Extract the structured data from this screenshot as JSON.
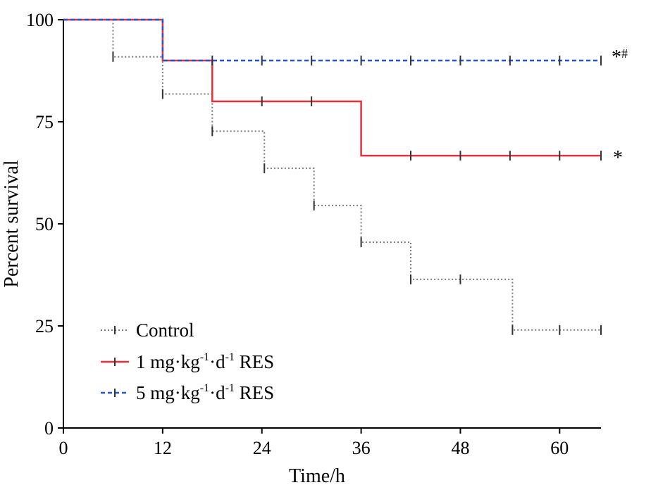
{
  "chart_data": {
    "type": "line",
    "subtype": "kaplan-meier-step",
    "title": "",
    "xlabel": "Time/h",
    "ylabel": "Percent survival",
    "xlim": [
      0,
      65
    ],
    "ylim": [
      0,
      100
    ],
    "xticks": [
      0,
      12,
      24,
      36,
      48,
      60
    ],
    "yticks": [
      0,
      25,
      50,
      75,
      100
    ],
    "legend_position": "bottom-left",
    "series": [
      {
        "name": "Control",
        "legend_parts": {
          "pre": "Control"
        },
        "style": "dotted",
        "color": "#7a7a7a",
        "steps": [
          {
            "x": 0,
            "y": 100
          },
          {
            "x": 6,
            "y": 90.9
          },
          {
            "x": 12,
            "y": 81.8
          },
          {
            "x": 18,
            "y": 72.7
          },
          {
            "x": 24.3,
            "y": 63.6
          },
          {
            "x": 30.3,
            "y": 54.5
          },
          {
            "x": 36,
            "y": 45.5
          },
          {
            "x": 42,
            "y": 36.4
          },
          {
            "x": 54.3,
            "y": 24
          }
        ],
        "end_x": 65,
        "censor_marks": [
          6,
          12,
          18,
          24.3,
          30.3,
          36,
          42,
          48,
          54.3,
          60,
          65
        ]
      },
      {
        "name": "1 mg·kg-1·d-1 RES",
        "legend_parts": {
          "pre": "1 mg·kg",
          "sup1": "-1",
          "mid": "·d",
          "sup2": "-1",
          "post": " RES"
        },
        "style": "solid",
        "color": "#e8303a",
        "steps": [
          {
            "x": 0,
            "y": 100
          },
          {
            "x": 12,
            "y": 90
          },
          {
            "x": 18,
            "y": 80
          },
          {
            "x": 36,
            "y": 66.7
          }
        ],
        "end_x": 65,
        "censor_marks": [
          24,
          30,
          42,
          48,
          54,
          60,
          65
        ]
      },
      {
        "name": "5 mg·kg-1·d-1 RES",
        "legend_parts": {
          "pre": "5 mg·kg",
          "sup1": "-1",
          "mid": "·d",
          "sup2": "-1",
          "post": " RES"
        },
        "style": "dashed",
        "color": "#2255cc",
        "steps": [
          {
            "x": 0,
            "y": 100
          },
          {
            "x": 12,
            "y": 90
          }
        ],
        "end_x": 65,
        "censor_marks": [
          18,
          24,
          30,
          36,
          42,
          48,
          54,
          60,
          65
        ]
      }
    ],
    "annotations": [
      {
        "series": "5 mg·kg-1·d-1 RES",
        "star": "*",
        "sup": "#",
        "y": 90
      },
      {
        "series": "1 mg·kg-1·d-1 RES",
        "star": "*",
        "y": 66.7
      }
    ]
  }
}
